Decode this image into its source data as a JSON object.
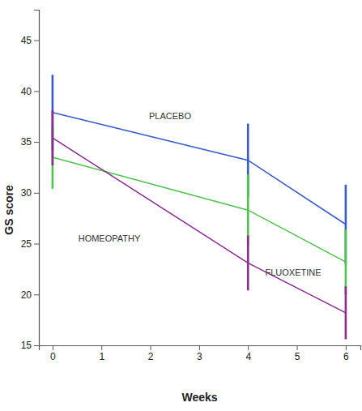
{
  "chart_data": {
    "type": "line",
    "x_label": "Weeks",
    "y_label": "GS score",
    "x": [
      0,
      4,
      6
    ],
    "xlim": [
      -0.28,
      6.3
    ],
    "xticks": [
      0,
      1,
      2,
      3,
      4,
      5,
      6
    ],
    "ylim": [
      15,
      48
    ],
    "yticks": [
      15,
      20,
      25,
      30,
      35,
      40,
      45
    ],
    "grid": false,
    "series": [
      {
        "name": "PLACEBO",
        "color": "#3a5bc7",
        "values": [
          37.9,
          33.2,
          26.9
        ],
        "errors": [
          3.7,
          3.6,
          3.9
        ],
        "marker": "none",
        "line_style": "solid"
      },
      {
        "name": "FLUOXETINE",
        "color": "#4fc24f",
        "values": [
          33.5,
          28.3,
          23.2
        ],
        "errors": [
          3.1,
          3.5,
          3.2
        ],
        "marker": "none",
        "line_style": "solid"
      },
      {
        "name": "HOMEOPATHY",
        "color": "#8b2d8e",
        "values": [
          35.4,
          23.1,
          18.2
        ],
        "errors": [
          2.7,
          2.7,
          2.6
        ],
        "marker": "none",
        "line_style": "solid"
      }
    ]
  }
}
